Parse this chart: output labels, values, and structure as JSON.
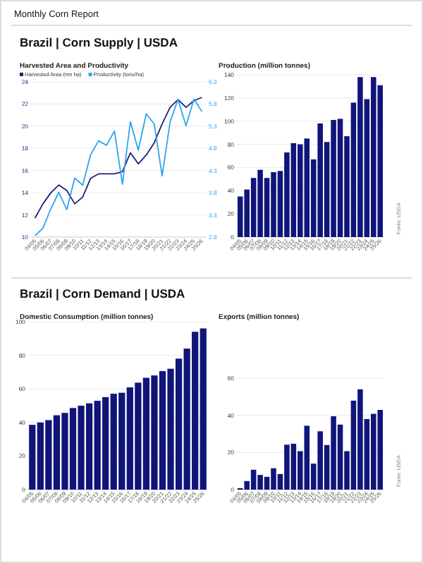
{
  "chart_data": [
    {
      "type": "line",
      "title": "Harvested Area and Productivity",
      "annotations": [
        "Monthly Corn Report",
        "Brazil | Corn Supply | USDA"
      ],
      "categories": [
        "04/05",
        "05/06",
        "06/07",
        "07/08",
        "08/09",
        "09/10",
        "10/11",
        "11/12",
        "12/13",
        "13/14",
        "14/15",
        "15/16",
        "16/17",
        "17/18",
        "18/19",
        "19/20",
        "20/21",
        "21/22",
        "22/23",
        "23/24",
        "24/25",
        "25/26"
      ],
      "series": [
        {
          "name": "Harvested Area (mn ha)",
          "color": "#1f1f7a",
          "values": [
            11.7,
            13.0,
            14.0,
            14.7,
            14.2,
            13.0,
            13.6,
            15.3,
            15.7,
            15.7,
            15.7,
            15.9,
            17.6,
            16.6,
            17.4,
            18.5,
            20.2,
            21.7,
            22.4,
            21.7,
            22.3,
            22.6
          ]
        },
        {
          "name": "Productivity (tons/ha)",
          "color": "#2ea3f2",
          "axis": "y2",
          "values": [
            2.83,
            3.0,
            3.44,
            3.81,
            3.42,
            4.13,
            3.97,
            4.66,
            4.97,
            4.87,
            5.19,
            3.99,
            5.4,
            4.76,
            5.58,
            5.35,
            4.18,
            5.4,
            5.9,
            5.31,
            5.91,
            5.63
          ]
        }
      ],
      "ylim": [
        10,
        24
      ],
      "yticks": [
        10,
        12,
        14,
        16,
        18,
        20,
        22,
        24
      ],
      "y2lim": [
        2.8,
        6.3
      ],
      "y2ticks": [
        2.8,
        3.3,
        3.8,
        4.3,
        4.8,
        5.3,
        5.8,
        6.3
      ],
      "grid": "y",
      "legend": "top left",
      "marker": "none",
      "line_style": "solid"
    },
    {
      "type": "bar",
      "title": "Production (million tonnes)",
      "annotations": [
        "Fonte: USDA"
      ],
      "categories": [
        "04/05",
        "05/06",
        "06/07",
        "07/08",
        "08/09",
        "09/10",
        "10/11",
        "11/12",
        "12/13",
        "13/14",
        "14/15",
        "15/16",
        "16/17",
        "17/18",
        "18/19",
        "19/20",
        "20/21",
        "21/22",
        "22/23",
        "23/24",
        "24/25",
        "25/26"
      ],
      "values": [
        35,
        41,
        51,
        58,
        51,
        56,
        57,
        73,
        81,
        80,
        85,
        67,
        98,
        82,
        101,
        102,
        87,
        116,
        138,
        119,
        138,
        131
      ],
      "color": "#10157a",
      "ylim": [
        0,
        140
      ],
      "yticks": [
        0,
        20,
        40,
        60,
        80,
        100,
        120,
        140
      ],
      "grid": "y"
    },
    {
      "type": "bar",
      "title": "Domestic Consumption (million tonnes)",
      "annotations": [
        "Brazil | Corn Demand | USDA"
      ],
      "categories": [
        "04/05",
        "05/06",
        "06/07",
        "07/08",
        "08/09",
        "09/10",
        "10/11",
        "11/12",
        "12/13",
        "13/14",
        "14/15",
        "15/16",
        "16/17",
        "17/18",
        "18/19",
        "19/20",
        "20/21",
        "21/22",
        "22/23",
        "23/24",
        "24/25",
        "25/26"
      ],
      "values": [
        38.6,
        40,
        41.4,
        44.3,
        45.7,
        48.6,
        50,
        51.4,
        52.9,
        55.1,
        57.1,
        57.7,
        60.9,
        63.7,
        66.6,
        68,
        70.6,
        72,
        78,
        84,
        94,
        96
      ],
      "color": "#10157a",
      "ylim": [
        0,
        100
      ],
      "yticks": [
        0,
        20,
        40,
        60,
        80,
        100
      ],
      "grid": "y"
    },
    {
      "type": "bar",
      "title": "Exports (million tonnes)",
      "annotations": [
        "Fonte: USDA"
      ],
      "categories": [
        "04/05",
        "05/06",
        "06/07",
        "07/08",
        "08/09",
        "09/10",
        "10/11",
        "11/12",
        "12/13",
        "13/14",
        "14/15",
        "15/16",
        "16/17",
        "17/18",
        "18/19",
        "19/20",
        "20/21",
        "21/22",
        "22/23",
        "23/24",
        "24/25",
        "25/26"
      ],
      "values": [
        0.8,
        4.6,
        10.7,
        7.9,
        6.9,
        11.5,
        8.4,
        24.2,
        24.7,
        20.7,
        34.4,
        14,
        31.4,
        24,
        39.5,
        35,
        20.7,
        47.9,
        54,
        38,
        40.8,
        42.9
      ],
      "color": "#10157a",
      "ylim": [
        0,
        60
      ],
      "yticks": [
        0,
        20,
        40,
        60
      ],
      "grid": "y"
    }
  ]
}
